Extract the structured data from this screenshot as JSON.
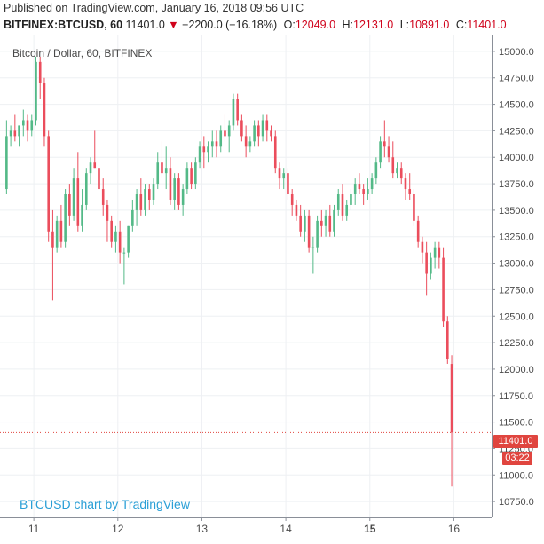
{
  "header": {
    "published": "Published on TradingView.com, January 16, 2018 09:56 UTC",
    "symbol": "BITFINEX:BTCUSD, 60",
    "last": "11401.0",
    "change": "−2200.0 (−16.18%)",
    "o_label": "O:",
    "o_value": "12049.0",
    "h_label": "H:",
    "h_value": "12131.0",
    "l_label": "L:",
    "l_value": "10891.0",
    "c_label": "C:",
    "c_value": "11401.0"
  },
  "chart_title": "Bitcoin / Dollar, 60, BITFINEX",
  "watermark": "BTCUSD chart by TradingView",
  "last_price_tag": "11401.0",
  "countdown_tag": "03:22",
  "colors": {
    "up": "#53b987",
    "down": "#eb4d5c",
    "last_line": "#e0453f",
    "grid": "#eef0f3",
    "axis_text": "#4a4a4a"
  },
  "chart_data": {
    "type": "candlestick",
    "title": "Bitcoin / Dollar, 60, BITFINEX",
    "ylim": [
      10600,
      15150
    ],
    "xlim": [
      0,
      116
    ],
    "yticks": [
      10750,
      11000,
      11250,
      11500,
      11750,
      12000,
      12250,
      12500,
      12750,
      13000,
      13250,
      13500,
      13750,
      14000,
      14250,
      14500,
      14750,
      15000
    ],
    "ytick_labels": [
      "10750.0",
      "11000.0",
      "11250.0",
      "11500.0",
      "11750.0",
      "12000.0",
      "12250.0",
      "12500.0",
      "12750.0",
      "13000.0",
      "13250.0",
      "13500.0",
      "13750.0",
      "14000.0",
      "14250.0",
      "14500.0",
      "14750.0",
      "15000.0"
    ],
    "xticks": [
      {
        "x": 7,
        "label": "11"
      },
      {
        "x": 27,
        "label": "12"
      },
      {
        "x": 47,
        "label": "13"
      },
      {
        "x": 67,
        "label": "14"
      },
      {
        "x": 87,
        "label": "15"
      },
      {
        "x": 107,
        "label": "16"
      }
    ],
    "last_price": 11401.0,
    "candles": [
      {
        "o": 13700,
        "h": 14350,
        "l": 13650,
        "c": 14200
      },
      {
        "o": 14200,
        "h": 14300,
        "l": 14100,
        "c": 14250
      },
      {
        "o": 14250,
        "h": 14400,
        "l": 14150,
        "c": 14200
      },
      {
        "o": 14200,
        "h": 14300,
        "l": 14100,
        "c": 14300
      },
      {
        "o": 14300,
        "h": 14450,
        "l": 14200,
        "c": 14350
      },
      {
        "o": 14350,
        "h": 14400,
        "l": 14150,
        "c": 14250
      },
      {
        "o": 14250,
        "h": 14400,
        "l": 14200,
        "c": 14350
      },
      {
        "o": 14350,
        "h": 14950,
        "l": 14300,
        "c": 14900
      },
      {
        "o": 14900,
        "h": 14950,
        "l": 14550,
        "c": 14700
      },
      {
        "o": 14700,
        "h": 14750,
        "l": 14100,
        "c": 14200
      },
      {
        "o": 14200,
        "h": 14250,
        "l": 13200,
        "c": 13300
      },
      {
        "o": 13300,
        "h": 13500,
        "l": 12650,
        "c": 13150
      },
      {
        "o": 13150,
        "h": 13450,
        "l": 13100,
        "c": 13400
      },
      {
        "o": 13400,
        "h": 13550,
        "l": 13150,
        "c": 13200
      },
      {
        "o": 13200,
        "h": 13700,
        "l": 13150,
        "c": 13650
      },
      {
        "o": 13650,
        "h": 13750,
        "l": 13350,
        "c": 13450
      },
      {
        "o": 13450,
        "h": 13900,
        "l": 13400,
        "c": 13800
      },
      {
        "o": 13800,
        "h": 14050,
        "l": 13300,
        "c": 13350
      },
      {
        "o": 13350,
        "h": 13700,
        "l": 13300,
        "c": 13550
      },
      {
        "o": 13550,
        "h": 13900,
        "l": 13500,
        "c": 13850
      },
      {
        "o": 13850,
        "h": 14000,
        "l": 13750,
        "c": 13950
      },
      {
        "o": 13950,
        "h": 14250,
        "l": 13900,
        "c": 13900
      },
      {
        "o": 13900,
        "h": 14000,
        "l": 13650,
        "c": 13700
      },
      {
        "o": 13700,
        "h": 13800,
        "l": 13450,
        "c": 13550
      },
      {
        "o": 13550,
        "h": 13600,
        "l": 13200,
        "c": 13400
      },
      {
        "o": 13400,
        "h": 13450,
        "l": 13150,
        "c": 13200
      },
      {
        "o": 13200,
        "h": 13350,
        "l": 13100,
        "c": 13300
      },
      {
        "o": 13300,
        "h": 13400,
        "l": 13000,
        "c": 13100
      },
      {
        "o": 13100,
        "h": 13150,
        "l": 12800,
        "c": 13100
      },
      {
        "o": 13100,
        "h": 13350,
        "l": 13050,
        "c": 13350
      },
      {
        "o": 13350,
        "h": 13600,
        "l": 13300,
        "c": 13500
      },
      {
        "o": 13500,
        "h": 13700,
        "l": 13350,
        "c": 13650
      },
      {
        "o": 13650,
        "h": 13800,
        "l": 13450,
        "c": 13500
      },
      {
        "o": 13500,
        "h": 13750,
        "l": 13450,
        "c": 13700
      },
      {
        "o": 13700,
        "h": 13750,
        "l": 13500,
        "c": 13600
      },
      {
        "o": 13600,
        "h": 13800,
        "l": 13550,
        "c": 13750
      },
      {
        "o": 13750,
        "h": 14050,
        "l": 13700,
        "c": 13950
      },
      {
        "o": 13950,
        "h": 14150,
        "l": 13800,
        "c": 13850
      },
      {
        "o": 13850,
        "h": 14100,
        "l": 13700,
        "c": 13900
      },
      {
        "o": 13900,
        "h": 14000,
        "l": 13550,
        "c": 13600
      },
      {
        "o": 13600,
        "h": 13850,
        "l": 13500,
        "c": 13800
      },
      {
        "o": 13800,
        "h": 13850,
        "l": 13500,
        "c": 13550
      },
      {
        "o": 13550,
        "h": 13750,
        "l": 13450,
        "c": 13700
      },
      {
        "o": 13700,
        "h": 13950,
        "l": 13650,
        "c": 13900
      },
      {
        "o": 13900,
        "h": 13950,
        "l": 13700,
        "c": 13750
      },
      {
        "o": 13750,
        "h": 14000,
        "l": 13700,
        "c": 13950
      },
      {
        "o": 13950,
        "h": 14150,
        "l": 13900,
        "c": 14100
      },
      {
        "o": 14100,
        "h": 14200,
        "l": 13900,
        "c": 14050
      },
      {
        "o": 14050,
        "h": 14150,
        "l": 13950,
        "c": 14100
      },
      {
        "o": 14100,
        "h": 14250,
        "l": 14000,
        "c": 14150
      },
      {
        "o": 14150,
        "h": 14250,
        "l": 14000,
        "c": 14100
      },
      {
        "o": 14100,
        "h": 14300,
        "l": 14050,
        "c": 14250
      },
      {
        "o": 14250,
        "h": 14400,
        "l": 14150,
        "c": 14200
      },
      {
        "o": 14200,
        "h": 14350,
        "l": 14050,
        "c": 14300
      },
      {
        "o": 14300,
        "h": 14600,
        "l": 14250,
        "c": 14550
      },
      {
        "o": 14550,
        "h": 14600,
        "l": 14300,
        "c": 14350
      },
      {
        "o": 14350,
        "h": 14400,
        "l": 14150,
        "c": 14200
      },
      {
        "o": 14200,
        "h": 14300,
        "l": 14000,
        "c": 14100
      },
      {
        "o": 14100,
        "h": 14200,
        "l": 14050,
        "c": 14150
      },
      {
        "o": 14150,
        "h": 14350,
        "l": 14100,
        "c": 14300
      },
      {
        "o": 14300,
        "h": 14350,
        "l": 14100,
        "c": 14200
      },
      {
        "o": 14200,
        "h": 14400,
        "l": 14150,
        "c": 14350
      },
      {
        "o": 14350,
        "h": 14400,
        "l": 14150,
        "c": 14250
      },
      {
        "o": 14250,
        "h": 14300,
        "l": 14150,
        "c": 14200
      },
      {
        "o": 14200,
        "h": 14250,
        "l": 13850,
        "c": 13900
      },
      {
        "o": 13900,
        "h": 13950,
        "l": 13700,
        "c": 13800
      },
      {
        "o": 13800,
        "h": 13900,
        "l": 13700,
        "c": 13850
      },
      {
        "o": 13850,
        "h": 13900,
        "l": 13600,
        "c": 13650
      },
      {
        "o": 13650,
        "h": 13700,
        "l": 13450,
        "c": 13550
      },
      {
        "o": 13550,
        "h": 13600,
        "l": 13400,
        "c": 13450
      },
      {
        "o": 13450,
        "h": 13550,
        "l": 13250,
        "c": 13300
      },
      {
        "o": 13300,
        "h": 13500,
        "l": 13200,
        "c": 13450
      },
      {
        "o": 13450,
        "h": 13500,
        "l": 13100,
        "c": 13150
      },
      {
        "o": 13150,
        "h": 13250,
        "l": 12900,
        "c": 13150
      },
      {
        "o": 13150,
        "h": 13450,
        "l": 13100,
        "c": 13400
      },
      {
        "o": 13400,
        "h": 13500,
        "l": 13250,
        "c": 13350
      },
      {
        "o": 13350,
        "h": 13500,
        "l": 13250,
        "c": 13450
      },
      {
        "o": 13450,
        "h": 13550,
        "l": 13250,
        "c": 13300
      },
      {
        "o": 13300,
        "h": 13550,
        "l": 13250,
        "c": 13500
      },
      {
        "o": 13500,
        "h": 13700,
        "l": 13450,
        "c": 13650
      },
      {
        "o": 13650,
        "h": 13750,
        "l": 13400,
        "c": 13450
      },
      {
        "o": 13450,
        "h": 13600,
        "l": 13400,
        "c": 13550
      },
      {
        "o": 13550,
        "h": 13700,
        "l": 13500,
        "c": 13650
      },
      {
        "o": 13650,
        "h": 13800,
        "l": 13550,
        "c": 13750
      },
      {
        "o": 13750,
        "h": 13850,
        "l": 13650,
        "c": 13700
      },
      {
        "o": 13700,
        "h": 13750,
        "l": 13550,
        "c": 13650
      },
      {
        "o": 13650,
        "h": 13800,
        "l": 13600,
        "c": 13700
      },
      {
        "o": 13700,
        "h": 13850,
        "l": 13650,
        "c": 13800
      },
      {
        "o": 13800,
        "h": 14000,
        "l": 13750,
        "c": 13950
      },
      {
        "o": 13950,
        "h": 14200,
        "l": 13900,
        "c": 14150
      },
      {
        "o": 14150,
        "h": 14350,
        "l": 14000,
        "c": 14100
      },
      {
        "o": 14100,
        "h": 14200,
        "l": 13950,
        "c": 14000
      },
      {
        "o": 14000,
        "h": 14150,
        "l": 13800,
        "c": 13850
      },
      {
        "o": 13850,
        "h": 13950,
        "l": 13800,
        "c": 13900
      },
      {
        "o": 13900,
        "h": 13950,
        "l": 13750,
        "c": 13800
      },
      {
        "o": 13800,
        "h": 13850,
        "l": 13600,
        "c": 13700
      },
      {
        "o": 13700,
        "h": 13850,
        "l": 13600,
        "c": 13650
      },
      {
        "o": 13650,
        "h": 13700,
        "l": 13350,
        "c": 13400
      },
      {
        "o": 13400,
        "h": 13450,
        "l": 13150,
        "c": 13200
      },
      {
        "o": 13200,
        "h": 13250,
        "l": 13000,
        "c": 13100
      },
      {
        "o": 13100,
        "h": 13200,
        "l": 12700,
        "c": 12900
      },
      {
        "o": 12900,
        "h": 13100,
        "l": 12850,
        "c": 13050
      },
      {
        "o": 13050,
        "h": 13200,
        "l": 12950,
        "c": 13150
      },
      {
        "o": 13150,
        "h": 13200,
        "l": 12950,
        "c": 13050
      },
      {
        "o": 13050,
        "h": 13150,
        "l": 12400,
        "c": 12450
      },
      {
        "o": 12450,
        "h": 12500,
        "l": 12050,
        "c": 12100
      },
      {
        "o": 12049,
        "h": 12131,
        "l": 10891,
        "c": 11401
      }
    ]
  }
}
